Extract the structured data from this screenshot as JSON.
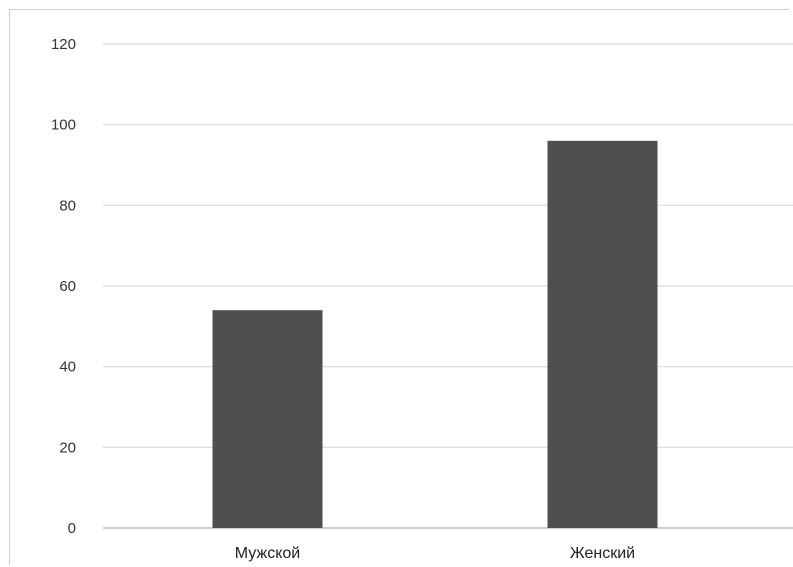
{
  "chart_data": {
    "type": "bar",
    "categories": [
      "Мужской",
      "Женский"
    ],
    "values": [
      54,
      96
    ],
    "ylim": [
      0,
      120
    ],
    "yticks": [
      "0",
      "20",
      "40",
      "60",
      "80",
      "100",
      "120"
    ],
    "grid": true,
    "bar_color": "#4f4f4f",
    "title": "",
    "xlabel": "",
    "ylabel": ""
  }
}
